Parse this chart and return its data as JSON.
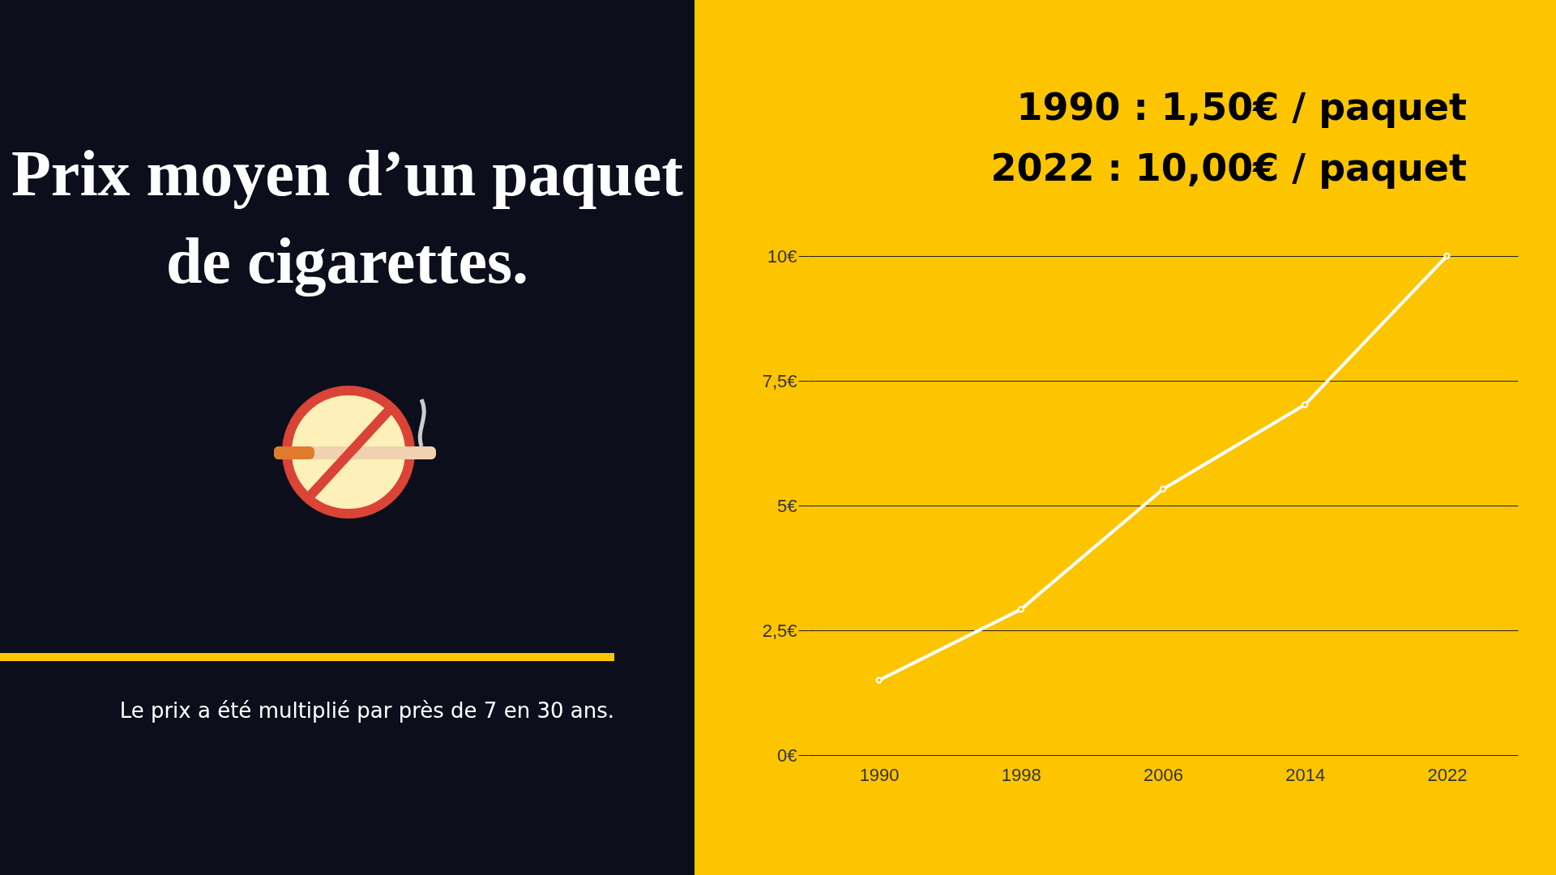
{
  "chart_data": {
    "type": "line",
    "title": "Prix moyen d’un paquet de cigarettes.",
    "annotations": [
      "1990 : 1,50€ / paquet",
      "2022 : 10,00€ / paquet",
      "Le prix a été multiplié par près de 7 en 30 ans."
    ],
    "categories": [
      "1990",
      "1998",
      "2006",
      "2014",
      "2022"
    ],
    "series": [
      {
        "color": "#ffffff",
        "values": [
          1.5,
          2.92,
          5.33,
          7.02,
          10
        ]
      }
    ],
    "ylim": [
      0,
      10
    ],
    "yticks": [
      {
        "value": 0,
        "label": "0€"
      },
      {
        "value": 2.5,
        "label": "2,5€"
      },
      {
        "value": 5,
        "label": "5€"
      },
      {
        "value": 7.5,
        "label": "7,5€"
      },
      {
        "value": 10,
        "label": "10€"
      }
    ],
    "grid": "y",
    "marker": "circle",
    "line_style": "solid"
  }
}
